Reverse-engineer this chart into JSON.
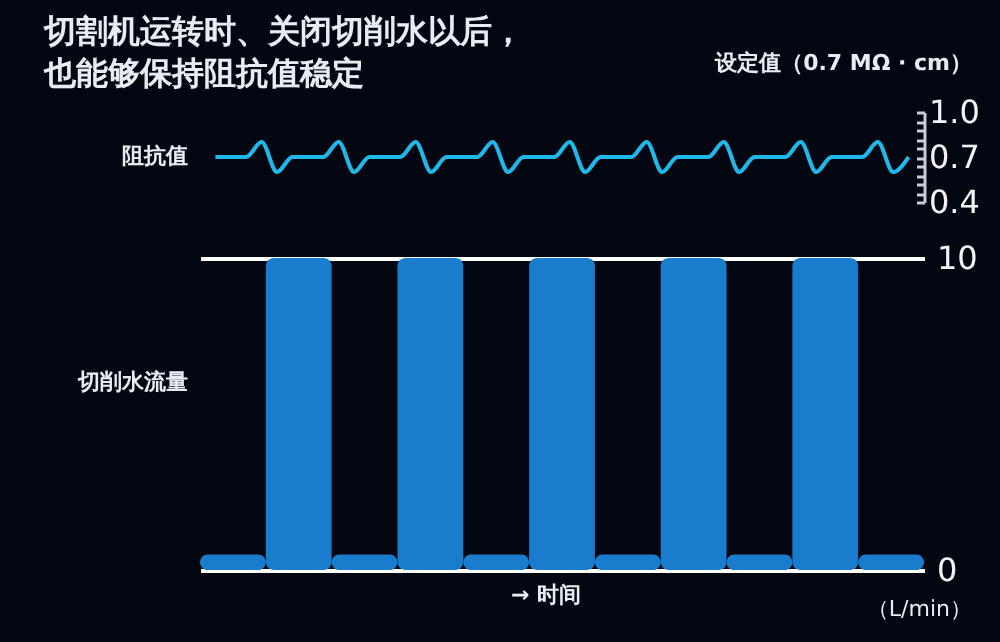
{
  "chart_data": [
    {
      "type": "line",
      "title": "切割机运转时、关闭切削水以后，也能够保持阻抗值稳定",
      "ylabel": "阻抗值",
      "annotations": [
        "设定值（0.7 MΩ · cm）"
      ],
      "categories": [
        null,
        null,
        null,
        null,
        null,
        null,
        null,
        null,
        null,
        null,
        null,
        null,
        null,
        null,
        null,
        null,
        null,
        null,
        null,
        null,
        null,
        null,
        null,
        null,
        null,
        null,
        null,
        null,
        null,
        null,
        null,
        null,
        null,
        null,
        null,
        null,
        null,
        null,
        null,
        null,
        null,
        null,
        null,
        null,
        null,
        null
      ],
      "series": [
        {
          "color": "#1fb8e8",
          "values": [
            0.7,
            0.7,
            0.7,
            0.8,
            0.6,
            0.7,
            0.7,
            0.7,
            0.8,
            0.6,
            0.7,
            0.7,
            0.7,
            0.8,
            0.6,
            0.7,
            0.7,
            0.7,
            0.8,
            0.6,
            0.7,
            0.7,
            0.7,
            0.8,
            0.6,
            0.7,
            0.7,
            0.7,
            0.8,
            0.6,
            0.7,
            0.7,
            0.7,
            0.8,
            0.6,
            0.7,
            0.7,
            0.7,
            0.8,
            0.6,
            0.7,
            0.7,
            0.7,
            0.8,
            0.6,
            0.7
          ]
        }
      ],
      "ylim": [
        0.4,
        1.0
      ],
      "yticks": [
        {
          "value": 0.4,
          "label": "0.4"
        },
        {
          "value": 0.46,
          "label": null
        },
        {
          "value": 0.52,
          "label": null
        },
        {
          "value": 0.58,
          "label": null
        },
        {
          "value": 0.64,
          "label": null
        },
        {
          "value": 0.7,
          "label": "0.7"
        },
        {
          "value": 0.76,
          "label": null
        },
        {
          "value": 0.82,
          "label": null
        },
        {
          "value": 0.88,
          "label": null
        },
        {
          "value": 0.94,
          "label": null
        },
        {
          "value": 1.0,
          "label": "1.0"
        }
      ],
      "tick_labels": "y",
      "marker": "none",
      "line_style": "solid"
    },
    {
      "type": "bar",
      "ylabel": "切削水流量",
      "xlabel": "→ 时间",
      "annotations": [
        "（L/min）"
      ],
      "categories": [
        null,
        null,
        null,
        null,
        null,
        null,
        null,
        null,
        null,
        null,
        null
      ],
      "series": [
        {
          "color": "#1a7ccc",
          "values": [
            0.5,
            10,
            0.5,
            10,
            0.5,
            10,
            0.5,
            10,
            0.5,
            10,
            0.5
          ]
        }
      ],
      "ylim": [
        0,
        10
      ],
      "yticks": [
        0,
        10
      ],
      "grid": "y",
      "tick_labels": "y"
    }
  ]
}
